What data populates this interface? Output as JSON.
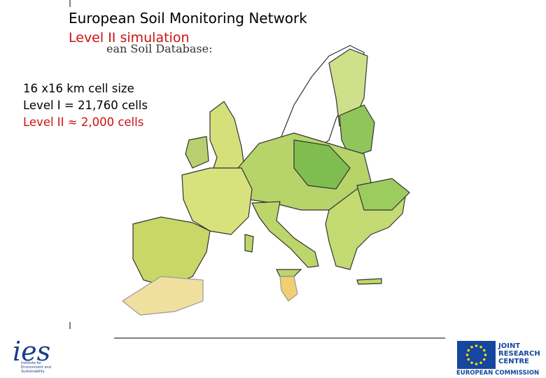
{
  "header": {
    "title": "European Soil Monitoring Network",
    "subtitle": "Level II simulation",
    "background_text": "ean Soil Database:"
  },
  "info": [
    "16 x16 km cell size",
    "Level I = 21,760 cells",
    "Level II ≈ 2,000 cells"
  ],
  "logos": {
    "ies": {
      "mark": "ies",
      "caption": [
        "Institute for",
        "Environment and",
        "Sustainability"
      ]
    },
    "jrc": {
      "name": [
        "JOINT",
        "RESEARCH",
        "CENTRE"
      ],
      "org": "EUROPEAN COMMISSION"
    }
  }
}
